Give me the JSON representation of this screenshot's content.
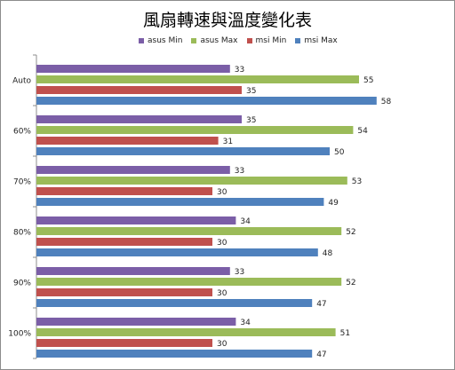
{
  "chart_data": {
    "type": "bar",
    "orientation": "horizontal",
    "title": "風扇轉速與溫度變化表",
    "xlabel": "",
    "ylabel": "",
    "xlim": [
      0,
      60
    ],
    "grid": false,
    "legend_position": "top",
    "categories": [
      "Auto",
      "60%",
      "70%",
      "80%",
      "90%",
      "100%"
    ],
    "series": [
      {
        "name": "asus Min",
        "color": "#7b5ea7",
        "values": [
          33,
          35,
          33,
          34,
          33,
          34
        ]
      },
      {
        "name": "asus Max",
        "color": "#9bbb59",
        "values": [
          55,
          54,
          53,
          52,
          52,
          51
        ]
      },
      {
        "name": "msi Min",
        "color": "#c0504d",
        "values": [
          35,
          31,
          30,
          30,
          30,
          30
        ]
      },
      {
        "name": "msi Max",
        "color": "#4f81bd",
        "values": [
          58,
          50,
          49,
          48,
          47,
          47
        ]
      }
    ]
  }
}
